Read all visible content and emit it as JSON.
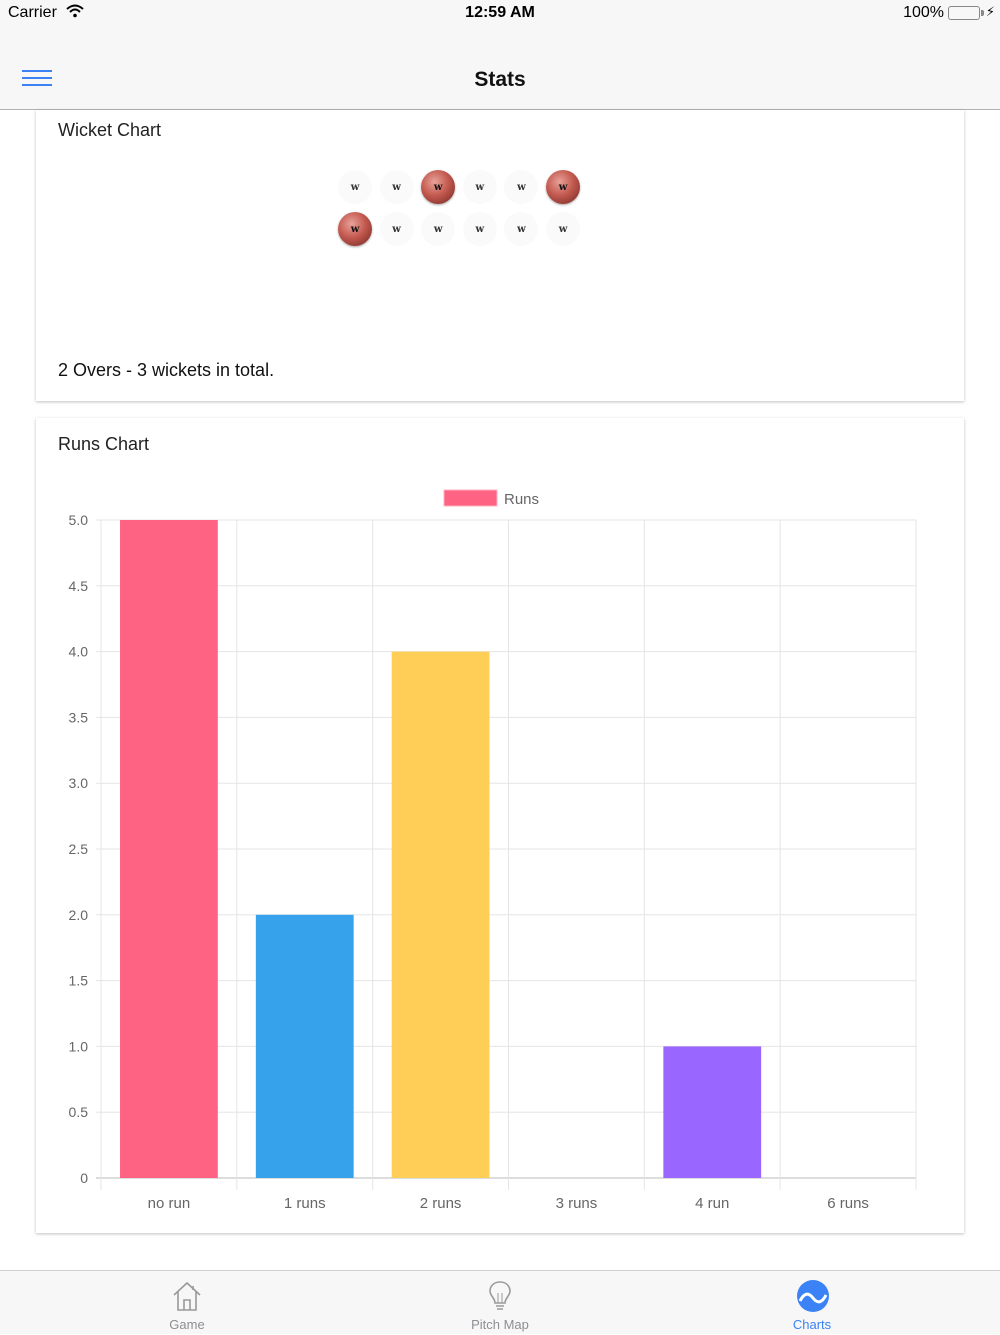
{
  "status_bar": {
    "carrier": "Carrier",
    "time": "12:59 AM",
    "battery": "100%"
  },
  "nav": {
    "title": "Stats"
  },
  "wicket_chart": {
    "title": "Wicket Chart",
    "overs": [
      [
        {
          "label": "w",
          "wicket": false
        },
        {
          "label": "w",
          "wicket": false
        },
        {
          "label": "w",
          "wicket": true
        },
        {
          "label": "w",
          "wicket": false
        },
        {
          "label": "w",
          "wicket": false
        },
        {
          "label": "w",
          "wicket": true
        }
      ],
      [
        {
          "label": "w",
          "wicket": true
        },
        {
          "label": "w",
          "wicket": false
        },
        {
          "label": "w",
          "wicket": false
        },
        {
          "label": "w",
          "wicket": false
        },
        {
          "label": "w",
          "wicket": false
        },
        {
          "label": "w",
          "wicket": false
        }
      ]
    ],
    "summary": "2 Overs - 3 wickets in total."
  },
  "runs_card": {
    "title": "Runs Chart"
  },
  "chart_data": {
    "type": "bar",
    "categories": [
      "no run",
      "1 runs",
      "2 runs",
      "3 runs",
      "4 run",
      "6 runs"
    ],
    "series": [
      {
        "name": "Runs",
        "values": [
          5,
          2,
          4,
          0,
          1,
          0
        ]
      }
    ],
    "colors": [
      "#ff6384",
      "#36a2eb",
      "#ffce56",
      "#4bc0c0",
      "#9966ff",
      "#ff9f40"
    ],
    "legend_color": "#ff6384",
    "ylim": [
      0,
      5
    ],
    "yticks": [
      "5.0",
      "4.5",
      "4.0",
      "3.5",
      "3.0",
      "2.5",
      "2.0",
      "1.5",
      "1.0",
      "0.5",
      "0"
    ],
    "legend_position": "top",
    "grid": true
  },
  "tabs": [
    {
      "label": "Game",
      "icon": "home-icon",
      "active": false
    },
    {
      "label": "Pitch Map",
      "icon": "lightbulb-icon",
      "active": false
    },
    {
      "label": "Charts",
      "icon": "charts-icon",
      "active": true
    }
  ]
}
